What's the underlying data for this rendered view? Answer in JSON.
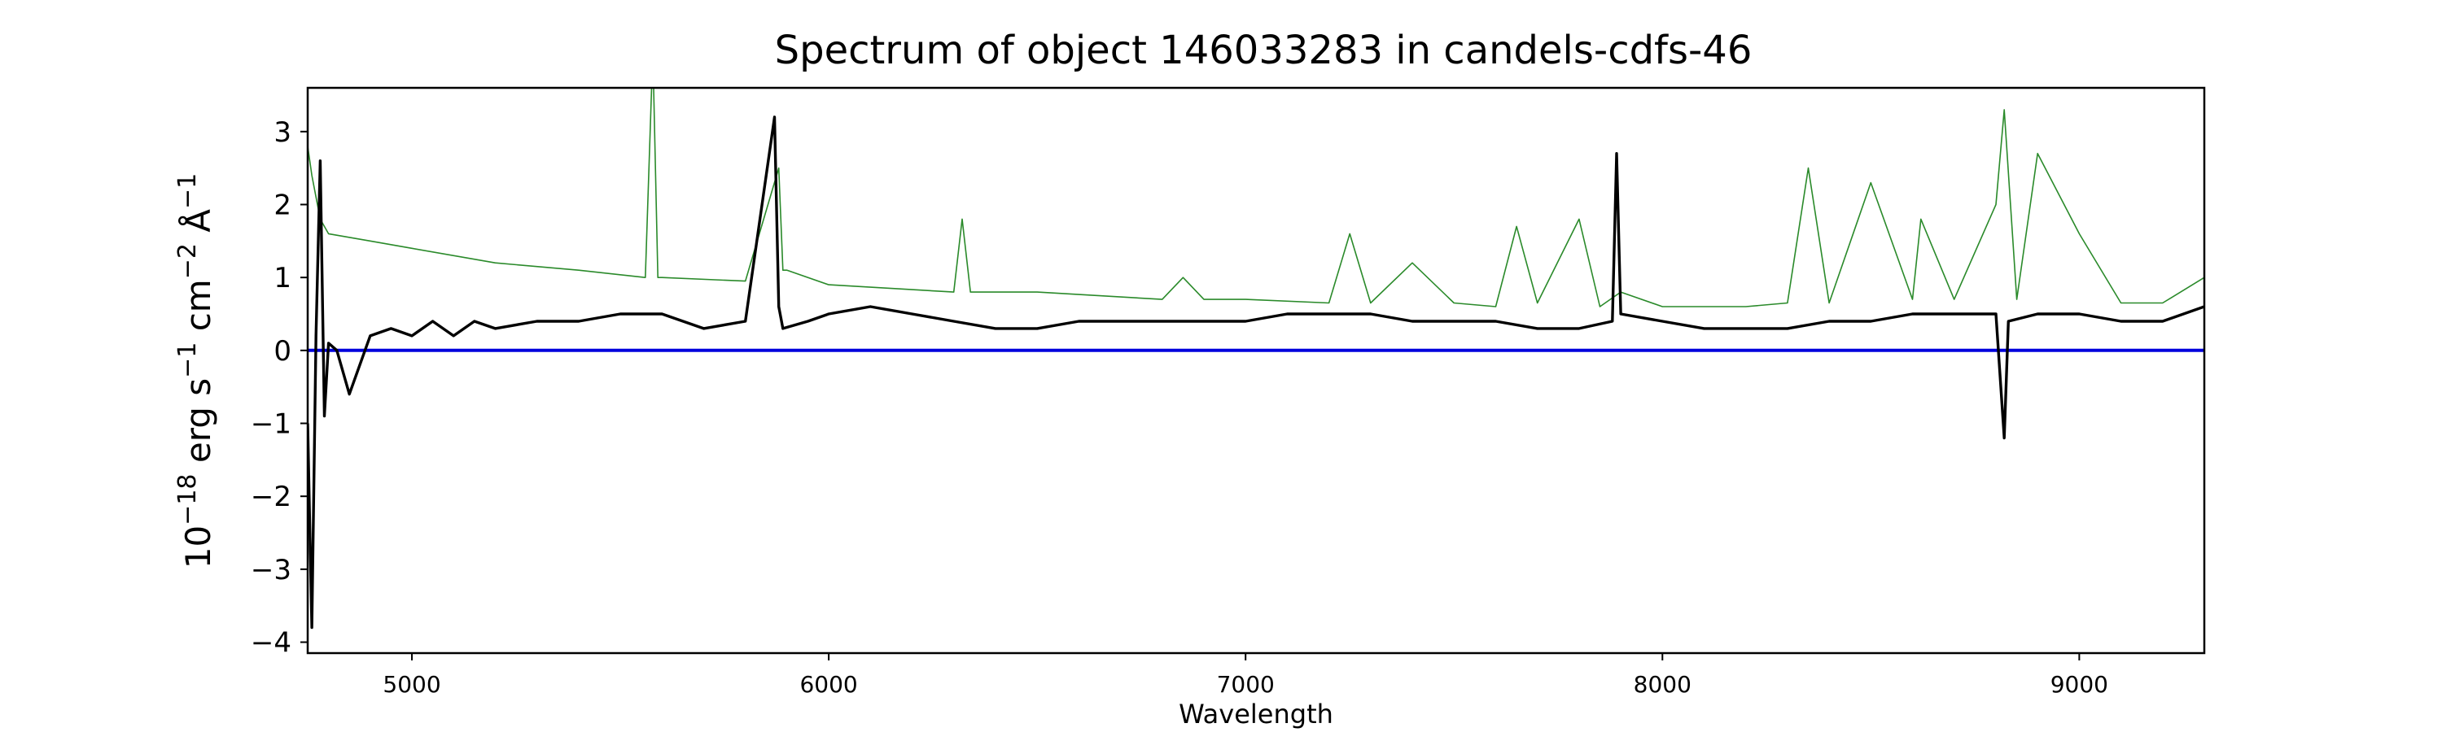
{
  "chart_data": {
    "type": "line",
    "title": "Spectrum of object 146033283 in candels-cdfs-46",
    "xlabel": "Wavelength",
    "ylabel_base": "10",
    "ylabel_exp": "−18",
    "ylabel_unit1": " erg s",
    "ylabel_unit1_exp": "−1",
    "ylabel_unit2": " cm",
    "ylabel_unit2_exp": "−2",
    "ylabel_unit3": " Å",
    "ylabel_unit3_exp": "−1",
    "xlim": [
      4750,
      9300
    ],
    "ylim": [
      -4.15,
      3.6
    ],
    "x_ticks": [
      5000,
      6000,
      7000,
      8000,
      9000
    ],
    "x_tick_labels": [
      "5000",
      "6000",
      "7000",
      "8000",
      "9000"
    ],
    "y_ticks": [
      -4,
      -3,
      -2,
      -1,
      0,
      1,
      2,
      3
    ],
    "y_tick_labels": [
      "−4",
      "−3",
      "−2",
      "−1",
      "0",
      "1",
      "2",
      "3"
    ],
    "grid": false,
    "series": [
      {
        "role": "flux",
        "color": "#000000",
        "x": [
          4750,
          4760,
          4770,
          4780,
          4790,
          4800,
          4820,
          4850,
          4900,
          4950,
          5000,
          5050,
          5100,
          5150,
          5200,
          5300,
          5400,
          5500,
          5600,
          5700,
          5800,
          5870,
          5880,
          5890,
          5950,
          6000,
          6100,
          6200,
          6300,
          6400,
          6500,
          6600,
          6700,
          6800,
          6900,
          7000,
          7100,
          7200,
          7300,
          7400,
          7500,
          7600,
          7700,
          7800,
          7880,
          7890,
          7900,
          8000,
          8100,
          8200,
          8300,
          8400,
          8500,
          8600,
          8700,
          8800,
          8820,
          8830,
          8900,
          9000,
          9100,
          9200,
          9300
        ],
        "y": [
          -1.0,
          -3.8,
          0.2,
          2.6,
          -0.9,
          0.1,
          0.0,
          -0.6,
          0.2,
          0.3,
          0.2,
          0.4,
          0.2,
          0.4,
          0.3,
          0.4,
          0.4,
          0.5,
          0.5,
          0.3,
          0.4,
          3.2,
          0.6,
          0.3,
          0.4,
          0.5,
          0.6,
          0.5,
          0.4,
          0.3,
          0.3,
          0.4,
          0.4,
          0.4,
          0.4,
          0.4,
          0.5,
          0.5,
          0.5,
          0.4,
          0.4,
          0.4,
          0.3,
          0.3,
          0.4,
          2.7,
          0.5,
          0.4,
          0.3,
          0.3,
          0.3,
          0.4,
          0.4,
          0.5,
          0.5,
          0.5,
          -1.2,
          0.4,
          0.5,
          0.5,
          0.4,
          0.4,
          0.6
        ]
      },
      {
        "role": "model",
        "color": "#2a8a2a",
        "x": [
          4750,
          4760,
          4780,
          4800,
          4900,
          5000,
          5200,
          5400,
          5560,
          5575,
          5580,
          5590,
          5600,
          5800,
          5880,
          5890,
          5900,
          6000,
          6300,
          6320,
          6340,
          6500,
          6800,
          6850,
          6900,
          7000,
          7200,
          7250,
          7300,
          7400,
          7500,
          7600,
          7650,
          7700,
          7800,
          7850,
          7900,
          8000,
          8200,
          8300,
          8350,
          8400,
          8500,
          8600,
          8620,
          8700,
          8800,
          8820,
          8850,
          8900,
          9000,
          9100,
          9200,
          9300
        ],
        "y": [
          2.8,
          2.4,
          1.8,
          1.6,
          1.5,
          1.4,
          1.2,
          1.1,
          1.0,
          3.6,
          3.6,
          1.0,
          1.0,
          0.95,
          2.5,
          1.1,
          1.1,
          0.9,
          0.8,
          1.8,
          0.8,
          0.8,
          0.7,
          1.0,
          0.7,
          0.7,
          0.65,
          1.6,
          0.65,
          1.2,
          0.65,
          0.6,
          1.7,
          0.65,
          1.8,
          0.6,
          0.8,
          0.6,
          0.6,
          0.65,
          2.5,
          0.65,
          2.3,
          0.7,
          1.8,
          0.7,
          2.0,
          3.3,
          0.7,
          2.7,
          1.6,
          0.65,
          0.65,
          1.0
        ]
      },
      {
        "role": "error",
        "color": "#0000dd",
        "x": [
          4750,
          9300
        ],
        "y": [
          0.0,
          0.0
        ]
      }
    ]
  }
}
